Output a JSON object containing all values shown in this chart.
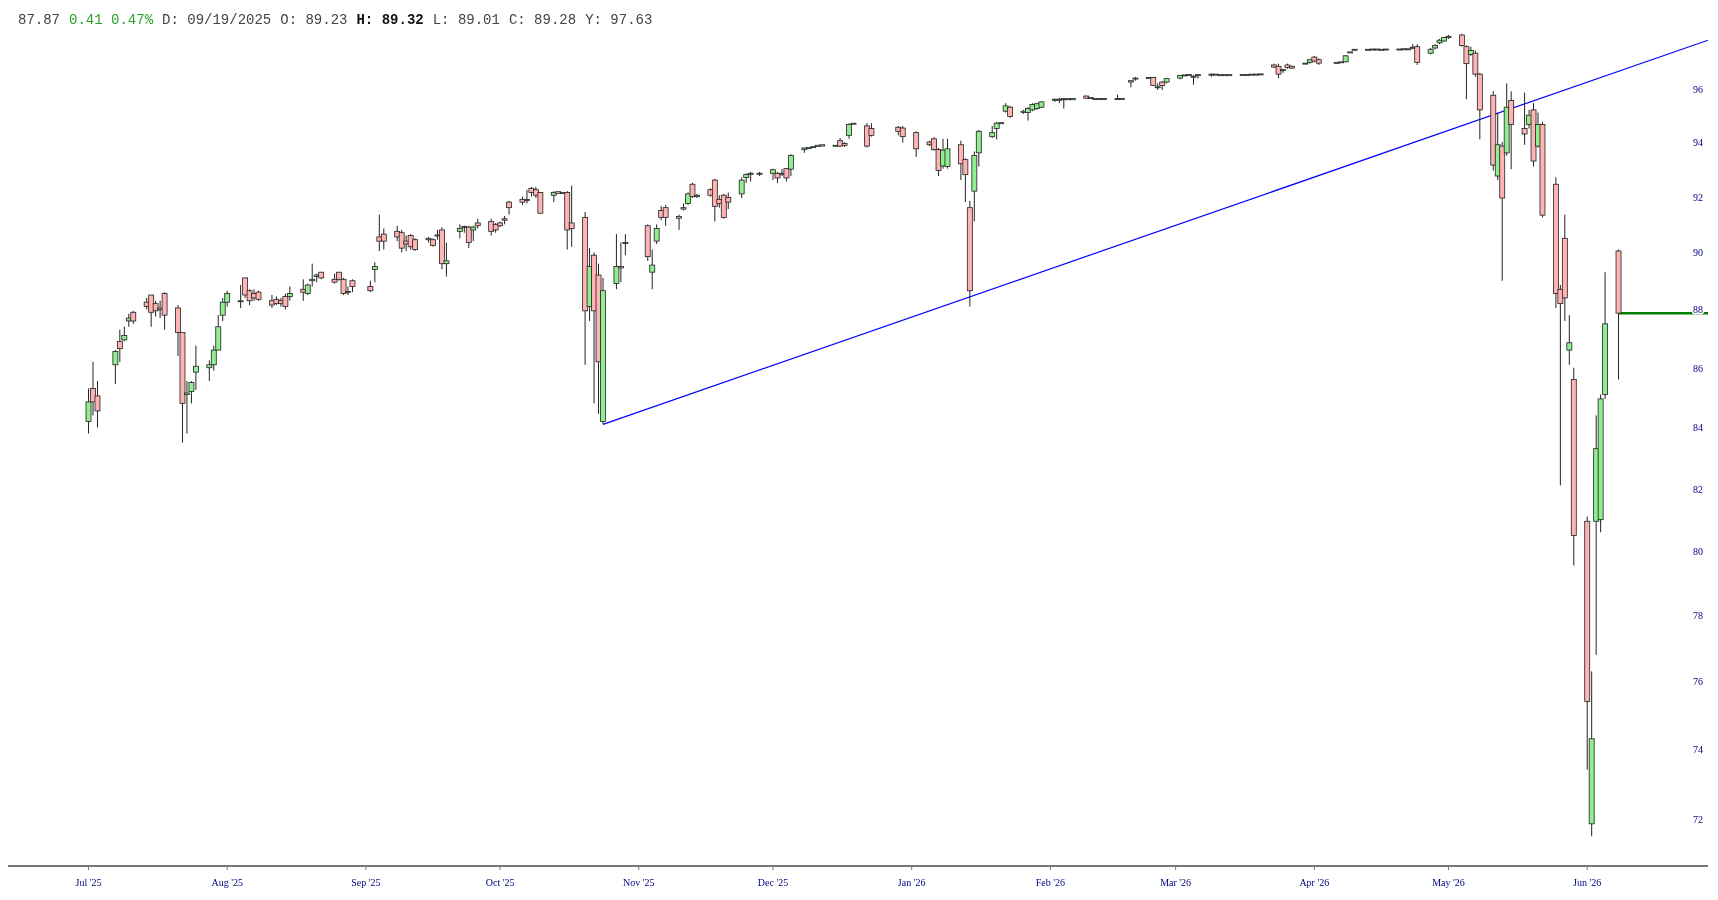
{
  "chart_data": {
    "type": "candlestick",
    "annotations": [
      "87.87",
      "0.41 0.47%",
      "D: 09/19/2025",
      "O: 89.23",
      "H: 89.32",
      "L: 89.01",
      "C: 89.28",
      "Y: 97.63"
    ],
    "colors": [
      "#90ee90",
      "#ffb3b3",
      "#ffb3b3",
      "#90ee90",
      "#ffb3b3",
      "#90ee90",
      "#90ee90",
      "#ffb3b3",
      "#ffb3b3",
      "#ffb3b3",
      "#ffb3b3",
      "#90ee90",
      "#ffb3b3",
      "#ffb3b3",
      "#ffb3b3",
      "#90ee90",
      "#90ee90",
      "#90ee90",
      "#90ee90",
      "#90ee90",
      "#90ee90",
      "#90ee90",
      "#90ee90",
      "#90ee90",
      "#ffb3b3",
      "#ffb3b3",
      "#ffb3b3",
      "#ffb3b3",
      "#ffb3b3",
      "#ffb3b3",
      "#ffb3b3",
      "#ffb3b3",
      "#90ee90",
      "#ffb3b3",
      "#90ee90",
      "#90ee90",
      "#90ee90",
      "#ffb3b3",
      "#ffb3b3",
      "#ffb3b3",
      "#ffb3b3",
      "#90ee90",
      "#ffb3b3",
      "#ffb3b3",
      "#90ee90",
      "#ffb3b3",
      "#ffb3b3",
      "#ffb3b3",
      "#ffb3b3",
      "#ffb3b3",
      "#ffb3b3",
      "#ffb3b3",
      "#ffb3b3",
      "#ffb3b3",
      "#90ee90",
      "#ffb3b3",
      "#90ee90",
      "#90ee90",
      "#90ee90",
      "#ffb3b3",
      "#90ee90",
      "#ffb3b3",
      "#ffb3b3",
      "#ffb3b3",
      "#ffb3b3",
      "#ffb3b3",
      "#ffb3b3",
      "#ffb3b3",
      "#ffb3b3",
      "#ffb3b3",
      "#ffb3b3",
      "#ffb3b3",
      "#90ee90",
      "#ffb3b3",
      "#90ee90",
      "#ffb3b3",
      "#ffb3b3",
      "#ffb3b3",
      "#90ee90",
      "#ffb3b3",
      "#ffb3b3",
      "#90ee90",
      "#90ee90",
      "#ffb3b3",
      "#90ee90",
      "#ffb3b3",
      "#90ee90",
      "#90ee90",
      "#ffb3b3",
      "#ffb3b3",
      "#ffb3b3",
      "#ffb3b3",
      "#90ee90",
      "#ffb3b3",
      "#90ee90",
      "#ffb3b3",
      "#ffb3b3",
      "#ffb3b3",
      "#ffb3b3",
      "#ffb3b3",
      "#90ee90",
      "#90ee90",
      "#90ee90",
      "#90ee90",
      "#90ee90",
      "#ffb3b3",
      "#90ee90",
      "#ffb3b3",
      "#90ee90",
      "#90ee90",
      "#90ee90",
      "#90ee90",
      "#90ee90",
      "#ffb3b3",
      "#90ee90",
      "#ffb3b3",
      "#ffb3b3",
      "#90ee90",
      "#90ee90",
      "#ffb3b3",
      "#ffb3b3",
      "#ffb3b3",
      "#ffb3b3",
      "#ffb3b3",
      "#ffb3b3",
      "#ffb3b3",
      "#ffb3b3",
      "#90ee90",
      "#90ee90",
      "#ffb3b3",
      "#ffb3b3",
      "#ffb3b3",
      "#90ee90",
      "#90ee90",
      "#90ee90",
      "#90ee90",
      "#90ee90",
      "#90ee90",
      "#ffb3b3",
      "#90ee90",
      "#90ee90",
      "#90ee90",
      "#90ee90",
      "#90ee90",
      "#90ee90",
      "#90ee90",
      "#90ee90",
      "#90ee90",
      "#90ee90",
      "#ffb3b3",
      "#ffb3b3",
      "#90ee90",
      "#ffb3b3",
      "#90ee90",
      "#90ee90",
      "#ffb3b3",
      "#90ee90",
      "#90ee90",
      "#90ee90",
      "#ffb3b3",
      "#90ee90",
      "#ffb3b3",
      "#90ee90",
      "#90ee90",
      "#90ee90",
      "#ffb3b3",
      "#90ee90",
      "#90ee90",
      "#90ee90",
      "#90ee90",
      "#ffb3b3",
      "#90ee90",
      "#90ee90",
      "#90ee90",
      "#90ee90",
      "#90ee90",
      "#90ee90",
      "#90ee90",
      "#ffb3b3",
      "#ffb3b3",
      "#90ee90",
      "#ffb3b3",
      "#ffb3b3",
      "#90ee90",
      "#90ee90",
      "#ffb3b3",
      "#ffb3b3",
      "#90ee90",
      "#90ee90",
      "#90ee90",
      "#90ee90",
      "#90ee90",
      "#90ee90",
      "#90ee90",
      "#ffb3b3",
      "#90ee90",
      "#90ee90",
      "#90ee90",
      "#90ee90",
      "#90ee90",
      "#90ee90",
      "#ffb3b3",
      "#90ee90",
      "#90ee90",
      "#90ee90",
      "#90ee90",
      "#90ee90",
      "#ffb3b3",
      "#ffb3b3",
      "#90ee90",
      "#ffb3b3",
      "#ffb3b3",
      "#ffb3b3",
      "#90ee90",
      "#ffb3b3",
      "#90ee90",
      "#ffb3b3",
      "#ffb3b3",
      "#90ee90",
      "#ffb3b3",
      "#90ee90",
      "#ffb3b3",
      "#ffb3b3",
      "#ffb3b3",
      "#ffb3b3",
      "#90ee90",
      "#ffb3b3",
      "#ffb3b3",
      "#90ee90",
      "#90ee90",
      "#90ee90",
      "#90ee90",
      "#ffb3b3"
    ],
    "log": "y",
    "grid": false,
    "xlim": [
      "2025-06-13",
      "2026-06-28"
    ],
    "xticks": [
      {
        "value": "2025-07-01",
        "label": "Jul '25"
      },
      {
        "value": "2025-08-01",
        "label": "Aug '25"
      },
      {
        "value": "2025-09-01",
        "label": "Sep '25"
      },
      {
        "value": "2025-10-01",
        "label": "Oct '25"
      },
      {
        "value": "2025-11-01",
        "label": "Nov '25"
      },
      {
        "value": "2025-12-01",
        "label": "Dec '25"
      },
      {
        "value": "2026-01-01",
        "label": "Jan '26"
      },
      {
        "value": "2026-02-01",
        "label": "Feb '26"
      },
      {
        "value": "2026-03-01",
        "label": "Mar '26"
      },
      {
        "value": "2026-04-01",
        "label": "Apr '26"
      },
      {
        "value": "2026-05-01",
        "label": "May '26"
      },
      {
        "value": "2026-06-01",
        "label": "Jun '26"
      }
    ],
    "ylim": [
      69.78,
      99.1
    ],
    "yticks": [
      72,
      74,
      76,
      78,
      80,
      82,
      84,
      86,
      88,
      90,
      92,
      94,
      96
    ],
    "x": [
      "2025-07-01",
      "2025-07-02",
      "2025-07-03",
      "2025-07-07",
      "2025-07-08",
      "2025-07-09",
      "2025-07-10",
      "2025-07-11",
      "2025-07-14",
      "2025-07-15",
      "2025-07-16",
      "2025-07-17",
      "2025-07-18",
      "2025-07-21",
      "2025-07-22",
      "2025-07-23",
      "2025-07-24",
      "2025-07-25",
      "2025-07-28",
      "2025-07-29",
      "2025-07-30",
      "2025-07-31",
      "2025-08-01",
      "2025-08-04",
      "2025-08-05",
      "2025-08-06",
      "2025-08-07",
      "2025-08-08",
      "2025-08-11",
      "2025-08-12",
      "2025-08-13",
      "2025-08-14",
      "2025-08-15",
      "2025-08-18",
      "2025-08-19",
      "2025-08-20",
      "2025-08-21",
      "2025-08-22",
      "2025-08-25",
      "2025-08-26",
      "2025-08-27",
      "2025-08-28",
      "2025-08-29",
      "2025-09-02",
      "2025-09-03",
      "2025-09-04",
      "2025-09-05",
      "2025-09-08",
      "2025-09-09",
      "2025-09-10",
      "2025-09-11",
      "2025-09-12",
      "2025-09-15",
      "2025-09-16",
      "2025-09-17",
      "2025-09-18",
      "2025-09-19",
      "2025-09-22",
      "2025-09-23",
      "2025-09-24",
      "2025-09-25",
      "2025-09-26",
      "2025-09-29",
      "2025-09-30",
      "2025-10-01",
      "2025-10-02",
      "2025-10-03",
      "2025-10-06",
      "2025-10-07",
      "2025-10-08",
      "2025-10-09",
      "2025-10-10",
      "2025-10-13",
      "2025-10-14",
      "2025-10-15",
      "2025-10-16",
      "2025-10-17",
      "2025-10-20",
      "2025-10-21",
      "2025-10-22",
      "2025-10-23",
      "2025-10-24",
      "2025-10-27",
      "2025-10-28",
      "2025-10-29",
      "2025-11-03",
      "2025-11-04",
      "2025-11-05",
      "2025-11-06",
      "2025-11-07",
      "2025-11-10",
      "2025-11-11",
      "2025-11-12",
      "2025-11-13",
      "2025-11-14",
      "2025-11-17",
      "2025-11-18",
      "2025-11-19",
      "2025-11-20",
      "2025-11-21",
      "2025-11-24",
      "2025-11-25",
      "2025-11-26",
      "2025-11-28",
      "2025-12-01",
      "2025-12-02",
      "2025-12-03",
      "2025-12-04",
      "2025-12-05",
      "2025-12-08",
      "2025-12-09",
      "2025-12-10",
      "2025-12-11",
      "2025-12-12",
      "2025-12-15",
      "2025-12-16",
      "2025-12-17",
      "2025-12-18",
      "2025-12-19",
      "2025-12-22",
      "2025-12-23",
      "2025-12-29",
      "2025-12-30",
      "2026-01-02",
      "2026-01-05",
      "2026-01-06",
      "2026-01-07",
      "2026-01-08",
      "2026-01-09",
      "2026-01-12",
      "2026-01-13",
      "2026-01-14",
      "2026-01-15",
      "2026-01-16",
      "2026-01-19",
      "2026-01-20",
      "2026-01-21",
      "2026-01-22",
      "2026-01-23",
      "2026-01-26",
      "2026-01-27",
      "2026-01-28",
      "2026-01-29",
      "2026-01-30",
      "2026-02-02",
      "2026-02-03",
      "2026-02-04",
      "2026-02-05",
      "2026-02-06",
      "2026-02-09",
      "2026-02-10",
      "2026-02-11",
      "2026-02-12",
      "2026-02-13",
      "2026-02-16",
      "2026-02-17",
      "2026-02-19",
      "2026-02-20",
      "2026-02-23",
      "2026-02-24",
      "2026-02-25",
      "2026-02-26",
      "2026-02-27",
      "2026-03-02",
      "2026-03-03",
      "2026-03-04",
      "2026-03-05",
      "2026-03-06",
      "2026-03-09",
      "2026-03-10",
      "2026-03-11",
      "2026-03-12",
      "2026-03-13",
      "2026-03-16",
      "2026-03-17",
      "2026-03-18",
      "2026-03-19",
      "2026-03-20",
      "2026-03-23",
      "2026-03-24",
      "2026-03-25",
      "2026-03-26",
      "2026-03-27",
      "2026-03-30",
      "2026-03-31",
      "2026-04-01",
      "2026-04-02",
      "2026-04-06",
      "2026-04-07",
      "2026-04-08",
      "2026-04-09",
      "2026-04-10",
      "2026-04-13",
      "2026-04-14",
      "2026-04-15",
      "2026-04-16",
      "2026-04-17",
      "2026-04-20",
      "2026-04-21",
      "2026-04-22",
      "2026-04-23",
      "2026-04-24",
      "2026-04-27",
      "2026-04-28",
      "2026-04-29",
      "2026-04-30",
      "2026-05-01",
      "2026-05-04",
      "2026-05-05",
      "2026-05-06",
      "2026-05-07",
      "2026-05-08",
      "2026-05-11",
      "2026-05-12",
      "2026-05-13",
      "2026-05-14",
      "2026-05-15",
      "2026-05-18",
      "2026-05-19",
      "2026-05-20",
      "2026-05-21",
      "2026-05-22",
      "2026-05-25",
      "2026-05-26",
      "2026-05-27",
      "2026-05-28",
      "2026-05-29",
      "2026-06-01",
      "2026-06-02",
      "2026-06-03",
      "2026-06-04",
      "2026-06-05",
      "2026-06-08"
    ],
    "ohlc": [
      [
        84.2,
        85.3,
        83.8,
        84.85
      ],
      [
        85.3,
        86.2,
        84.4,
        84.85
      ],
      [
        85.05,
        85.55,
        84.0,
        84.55
      ],
      [
        86.1,
        86.6,
        85.45,
        86.55
      ],
      [
        86.9,
        87.3,
        86.2,
        86.65
      ],
      [
        86.95,
        87.4,
        86.9,
        87.1
      ],
      [
        87.6,
        87.85,
        87.4,
        87.7
      ],
      [
        87.9,
        87.95,
        87.5,
        87.6
      ],
      [
        88.25,
        88.4,
        88.0,
        88.1
      ],
      [
        88.5,
        88.5,
        87.4,
        87.9
      ],
      [
        88.2,
        88.3,
        87.75,
        87.95
      ],
      [
        88.0,
        88.3,
        87.7,
        88.05
      ],
      [
        88.55,
        88.6,
        87.3,
        87.8
      ],
      [
        88.05,
        88.15,
        86.4,
        87.2
      ],
      [
        87.2,
        87.2,
        83.5,
        84.8
      ],
      [
        85.1,
        85.55,
        83.8,
        85.15
      ],
      [
        85.2,
        85.55,
        84.8,
        85.5
      ],
      [
        85.85,
        86.75,
        85.25,
        86.05
      ],
      [
        86.0,
        86.25,
        85.55,
        86.1
      ],
      [
        86.1,
        86.75,
        85.9,
        86.6
      ],
      [
        86.6,
        87.8,
        86.6,
        87.4
      ],
      [
        87.8,
        88.4,
        87.6,
        88.25
      ],
      [
        88.25,
        88.65,
        88.1,
        88.55
      ],
      [
        88.3,
        88.85,
        88.05,
        88.3
      ],
      [
        89.1,
        89.1,
        88.4,
        88.5
      ],
      [
        88.65,
        88.7,
        88.15,
        88.3
      ],
      [
        88.55,
        88.7,
        88.3,
        88.4
      ],
      [
        88.6,
        88.65,
        88.3,
        88.35
      ],
      [
        88.3,
        88.5,
        88.05,
        88.15
      ],
      [
        88.35,
        88.45,
        88.15,
        88.2
      ],
      [
        88.3,
        88.4,
        88.1,
        88.2
      ],
      [
        88.45,
        88.55,
        88.0,
        88.1
      ],
      [
        88.45,
        88.8,
        88.3,
        88.55
      ],
      [
        88.7,
        89.05,
        88.3,
        88.6
      ],
      [
        88.55,
        88.9,
        88.5,
        88.85
      ],
      [
        89.0,
        89.6,
        88.8,
        89.05
      ],
      [
        89.15,
        89.25,
        88.95,
        89.2
      ],
      [
        89.3,
        89.3,
        89.05,
        89.1
      ],
      [
        89.05,
        89.25,
        88.9,
        88.95
      ],
      [
        89.3,
        89.3,
        89.0,
        89.05
      ],
      [
        89.05,
        89.1,
        88.5,
        88.55
      ],
      [
        88.6,
        88.8,
        88.5,
        88.62
      ],
      [
        89.0,
        89.05,
        88.6,
        88.8
      ],
      [
        88.8,
        89.0,
        88.6,
        88.65
      ],
      [
        89.4,
        89.65,
        88.95,
        89.5
      ],
      [
        90.55,
        91.35,
        90.05,
        90.4
      ],
      [
        90.65,
        90.85,
        90.1,
        90.4
      ],
      [
        90.75,
        90.95,
        90.4,
        90.55
      ],
      [
        90.7,
        90.8,
        90.0,
        90.15
      ],
      [
        90.4,
        90.6,
        90.05,
        90.3
      ],
      [
        90.6,
        90.65,
        90.1,
        90.2
      ],
      [
        90.45,
        90.5,
        90.05,
        90.1
      ],
      [
        90.5,
        90.55,
        90.35,
        90.45
      ],
      [
        90.45,
        90.5,
        90.2,
        90.25
      ],
      [
        90.6,
        90.8,
        90.45,
        90.62
      ],
      [
        90.8,
        90.9,
        89.4,
        89.6
      ],
      [
        89.6,
        90.35,
        89.15,
        89.7
      ],
      [
        90.75,
        91.0,
        90.5,
        90.85
      ],
      [
        90.9,
        90.95,
        90.7,
        90.92
      ],
      [
        90.9,
        90.95,
        90.15,
        90.35
      ],
      [
        90.8,
        90.95,
        90.4,
        90.9
      ],
      [
        91.05,
        91.2,
        90.85,
        90.95
      ],
      [
        91.1,
        91.2,
        90.6,
        90.75
      ],
      [
        91.0,
        91.05,
        90.7,
        90.8
      ],
      [
        91.05,
        91.1,
        90.9,
        90.95
      ],
      [
        91.2,
        91.3,
        91.0,
        91.15
      ],
      [
        91.8,
        91.85,
        91.35,
        91.6
      ],
      [
        91.9,
        92.0,
        91.7,
        91.8
      ],
      [
        91.9,
        92.25,
        91.75,
        91.88
      ],
      [
        92.3,
        92.35,
        92.0,
        92.15
      ],
      [
        92.25,
        92.35,
        91.95,
        92.05
      ],
      [
        92.15,
        92.15,
        91.4,
        91.4
      ],
      [
        92.05,
        92.2,
        91.8,
        92.15
      ],
      [
        92.18,
        92.2,
        92.1,
        92.12
      ],
      [
        92.15,
        92.2,
        92.1,
        92.15
      ],
      [
        92.15,
        92.2,
        90.1,
        90.8
      ],
      [
        91.05,
        92.4,
        90.2,
        90.85
      ],
      [
        91.25,
        91.45,
        86.1,
        87.95
      ],
      [
        88.1,
        90.15,
        87.6,
        89.5
      ],
      [
        89.9,
        90.0,
        84.8,
        87.95
      ],
      [
        89.2,
        89.6,
        84.45,
        86.2
      ],
      [
        84.2,
        89.1,
        84.1,
        88.65
      ],
      [
        88.9,
        90.65,
        88.7,
        89.5
      ],
      [
        89.5,
        90.35,
        88.95,
        89.45
      ],
      [
        90.35,
        90.65,
        89.9,
        90.35
      ],
      [
        90.95,
        91.0,
        89.7,
        89.85
      ],
      [
        89.3,
        90.1,
        88.7,
        89.55
      ],
      [
        90.4,
        91.0,
        90.3,
        90.85
      ],
      [
        91.5,
        91.65,
        91.15,
        91.25
      ],
      [
        91.6,
        91.7,
        90.95,
        91.25
      ],
      [
        91.28,
        91.35,
        90.8,
        91.22
      ],
      [
        91.6,
        91.75,
        91.5,
        91.55
      ],
      [
        91.75,
        92.15,
        91.7,
        92.1
      ],
      [
        92.45,
        92.5,
        91.95,
        92.0
      ],
      [
        92.0,
        92.1,
        91.95,
        92.05
      ],
      [
        92.25,
        92.3,
        92.0,
        92.05
      ],
      [
        92.6,
        92.65,
        91.1,
        91.65
      ],
      [
        91.9,
        92.05,
        91.6,
        91.75
      ],
      [
        92.05,
        92.1,
        91.2,
        91.25
      ],
      [
        91.97,
        92.15,
        91.55,
        91.8
      ],
      [
        92.1,
        92.7,
        91.95,
        92.6
      ],
      [
        92.7,
        92.85,
        92.5,
        92.8
      ],
      [
        92.83,
        92.9,
        92.55,
        92.85
      ],
      [
        92.85,
        92.9,
        92.75,
        92.85
      ],
      [
        92.85,
        93.02,
        92.6,
        92.98
      ],
      [
        92.85,
        92.9,
        92.5,
        92.68
      ],
      [
        92.85,
        93.0,
        92.75,
        92.85
      ],
      [
        93.02,
        93.05,
        92.55,
        92.68
      ],
      [
        93.0,
        93.55,
        92.75,
        93.5
      ],
      [
        93.72,
        93.8,
        93.6,
        93.78
      ],
      [
        93.78,
        93.82,
        93.72,
        93.8
      ],
      [
        93.82,
        93.85,
        93.78,
        93.83
      ],
      [
        93.86,
        93.9,
        93.82,
        93.88
      ],
      [
        93.9,
        93.92,
        93.82,
        93.85
      ],
      [
        93.85,
        93.9,
        93.8,
        93.88
      ],
      [
        94.05,
        94.15,
        93.82,
        93.85
      ],
      [
        93.95,
        94.0,
        93.82,
        93.88
      ],
      [
        94.25,
        94.7,
        94.12,
        94.65
      ],
      [
        94.68,
        94.72,
        94.65,
        94.7
      ],
      [
        94.6,
        94.7,
        93.8,
        93.85
      ],
      [
        94.5,
        94.7,
        94.2,
        94.25
      ],
      [
        94.55,
        94.6,
        94.25,
        94.4
      ],
      [
        94.52,
        94.6,
        93.98,
        94.2
      ],
      [
        94.35,
        94.4,
        93.45,
        93.75
      ],
      [
        94.0,
        94.05,
        93.85,
        93.9
      ],
      [
        94.12,
        94.18,
        93.68,
        93.72
      ],
      [
        93.72,
        93.78,
        92.75,
        92.95
      ],
      [
        93.12,
        94.12,
        93.02,
        93.7
      ],
      [
        93.1,
        94.12,
        93.02,
        93.75
      ],
      [
        93.9,
        94.05,
        92.6,
        93.2
      ],
      [
        93.35,
        93.4,
        91.8,
        92.8
      ],
      [
        91.6,
        91.85,
        88.1,
        88.65
      ],
      [
        92.2,
        93.65,
        91.1,
        93.5
      ],
      [
        93.6,
        94.45,
        93.1,
        94.4
      ],
      [
        94.2,
        94.6,
        94.15,
        94.35
      ],
      [
        94.5,
        94.75,
        94.1,
        94.7
      ],
      [
        94.7,
        94.75,
        94.65,
        94.72
      ],
      [
        95.15,
        95.45,
        95.1,
        95.35
      ],
      [
        95.3,
        95.35,
        94.9,
        94.95
      ],
      [
        95.1,
        95.2,
        95.05,
        95.15
      ],
      [
        95.1,
        95.3,
        94.8,
        95.25
      ],
      [
        95.2,
        95.45,
        95.15,
        95.4
      ],
      [
        95.25,
        95.47,
        95.2,
        95.43
      ],
      [
        95.3,
        95.52,
        95.28,
        95.5
      ],
      [
        95.58,
        95.62,
        95.5,
        95.6
      ],
      [
        95.6,
        95.65,
        95.45,
        95.6
      ],
      [
        95.6,
        95.65,
        95.25,
        95.62
      ],
      [
        95.6,
        95.66,
        95.58,
        95.62
      ],
      [
        95.58,
        95.65,
        95.56,
        95.63
      ],
      [
        95.72,
        95.74,
        95.62,
        95.64
      ],
      [
        95.67,
        95.69,
        95.6,
        95.63
      ],
      [
        95.63,
        95.65,
        95.6,
        95.63
      ],
      [
        95.63,
        95.65,
        95.6,
        95.62
      ],
      [
        95.62,
        95.65,
        95.6,
        95.63
      ],
      [
        95.63,
        95.77,
        95.6,
        95.63
      ],
      [
        95.63,
        95.65,
        95.6,
        95.62
      ],
      [
        96.25,
        96.32,
        96.05,
        96.3
      ],
      [
        96.38,
        96.45,
        96.3,
        96.4
      ],
      [
        96.4,
        96.44,
        96.35,
        96.42
      ],
      [
        96.42,
        96.44,
        96.1,
        96.12
      ],
      [
        96.05,
        96.2,
        95.95,
        96.07
      ],
      [
        96.25,
        96.28,
        95.95,
        96.12
      ],
      [
        96.25,
        96.4,
        96.2,
        96.38
      ],
      [
        96.4,
        96.52,
        96.35,
        96.5
      ],
      [
        96.5,
        96.55,
        96.48,
        96.52
      ],
      [
        96.54,
        96.56,
        96.47,
        96.5
      ],
      [
        96.45,
        96.52,
        96.15,
        96.47
      ],
      [
        96.52,
        96.55,
        96.38,
        96.53
      ],
      [
        96.54,
        96.57,
        96.45,
        96.55
      ],
      [
        96.55,
        96.57,
        96.52,
        96.55
      ],
      [
        96.53,
        96.55,
        96.5,
        96.52
      ],
      [
        96.52,
        96.55,
        96.5,
        96.53
      ],
      [
        96.53,
        96.55,
        96.5,
        96.53
      ],
      [
        96.53,
        96.56,
        96.5,
        96.54
      ],
      [
        96.54,
        96.56,
        96.51,
        96.54
      ],
      [
        96.54,
        96.57,
        96.5,
        96.55
      ],
      [
        96.55,
        96.57,
        96.52,
        96.55
      ],
      [
        96.55,
        96.57,
        96.52,
        96.56
      ],
      [
        96.9,
        96.95,
        96.78,
        96.82
      ],
      [
        96.85,
        96.95,
        96.4,
        96.55
      ],
      [
        96.7,
        96.75,
        96.6,
        96.72
      ],
      [
        96.9,
        96.95,
        96.75,
        96.8
      ],
      [
        96.85,
        96.88,
        96.75,
        96.78
      ],
      [
        96.95,
        97.0,
        96.9,
        96.97
      ],
      [
        97.0,
        97.12,
        96.95,
        97.1
      ],
      [
        97.2,
        97.25,
        97.0,
        97.05
      ],
      [
        97.1,
        97.15,
        96.9,
        96.97
      ],
      [
        96.98,
        97.02,
        96.95,
        97.0
      ],
      [
        97.0,
        97.05,
        96.97,
        97.02
      ],
      [
        97.02,
        97.28,
        97.0,
        97.25
      ],
      [
        97.38,
        97.42,
        97.35,
        97.4
      ],
      [
        97.48,
        97.52,
        97.46,
        97.5
      ],
      [
        97.5,
        97.52,
        97.48,
        97.5
      ],
      [
        97.5,
        97.53,
        97.48,
        97.51
      ],
      [
        97.51,
        97.53,
        97.49,
        97.5
      ],
      [
        97.5,
        97.52,
        97.48,
        97.5
      ],
      [
        97.5,
        97.53,
        97.49,
        97.51
      ],
      [
        97.51,
        97.53,
        97.49,
        97.51
      ],
      [
        97.51,
        97.53,
        97.5,
        97.52
      ],
      [
        97.52,
        97.54,
        97.5,
        97.52
      ],
      [
        97.55,
        97.7,
        97.5,
        97.58
      ],
      [
        97.6,
        97.7,
        96.9,
        97.0
      ],
      [
        97.35,
        97.55,
        97.3,
        97.5
      ],
      [
        97.55,
        97.7,
        97.5,
        97.65
      ],
      [
        97.75,
        97.9,
        97.7,
        97.85
      ],
      [
        97.82,
        97.98,
        97.8,
        97.95
      ],
      [
        97.95,
        98.05,
        97.9,
        98.0
      ],
      [
        98.05,
        98.1,
        97.6,
        97.65
      ],
      [
        97.6,
        97.65,
        95.6,
        96.95
      ],
      [
        97.3,
        97.6,
        97.25,
        97.45
      ],
      [
        97.35,
        97.45,
        96.45,
        96.55
      ],
      [
        96.55,
        96.6,
        94.1,
        95.2
      ],
      [
        95.75,
        95.9,
        92.95,
        93.15
      ],
      [
        92.75,
        95.1,
        92.6,
        93.9
      ],
      [
        93.85,
        94.0,
        89.0,
        91.95
      ],
      [
        93.6,
        96.2,
        93.5,
        95.3
      ],
      [
        95.55,
        95.9,
        93.0,
        94.65
      ],
      [
        94.5,
        95.85,
        93.9,
        94.3
      ],
      [
        94.65,
        95.2,
        94.5,
        95.0
      ],
      [
        95.2,
        95.45,
        93.1,
        93.3
      ],
      [
        93.85,
        95.1,
        93.8,
        94.65
      ],
      [
        94.65,
        94.75,
        91.25,
        91.33
      ],
      [
        92.45,
        92.7,
        88.05,
        88.55
      ],
      [
        88.7,
        88.85,
        82.1,
        88.2
      ],
      [
        90.5,
        91.35,
        87.6,
        88.4
      ],
      [
        86.6,
        87.8,
        86.1,
        86.85
      ],
      [
        85.6,
        86.0,
        79.55,
        80.5
      ],
      [
        80.95,
        81.1,
        73.4,
        75.4
      ],
      [
        71.85,
        76.3,
        71.5,
        74.3
      ],
      [
        80.95,
        84.4,
        76.8,
        83.3
      ],
      [
        81.0,
        85.1,
        80.6,
        84.95
      ],
      [
        85.1,
        89.3,
        84.95,
        87.5
      ],
      [
        90.05,
        90.1,
        85.6,
        87.87
      ]
    ],
    "series": [
      {
        "type": "line",
        "color": "#0000ff",
        "x": [
          "2025-10-24",
          "2026-06-28"
        ],
        "values": [
          84.1,
          97.85
        ]
      },
      {
        "type": "line",
        "color": "#008000",
        "x": [
          "2026-06-08",
          "2026-06-28"
        ],
        "values": [
          87.87,
          87.87
        ]
      }
    ]
  }
}
